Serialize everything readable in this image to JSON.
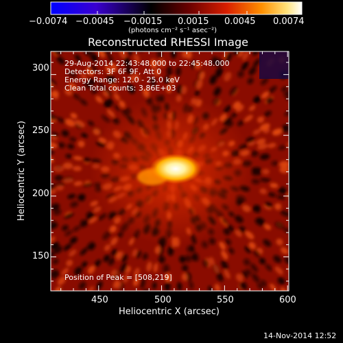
{
  "colorbar": {
    "tick_labels": [
      "−0.0074",
      "−0.0045",
      "−0.0015",
      "0.0015",
      "0.0045",
      "0.0074"
    ],
    "unit_label": "(photons cm⁻² s⁻¹ asec⁻²)",
    "colors": [
      "#0000ff",
      "#4b00c8",
      "#000000",
      "#7a0000",
      "#e02a00",
      "#ff9a00",
      "#ffe27a",
      "#ffffff"
    ]
  },
  "title": "Reconstructed RHESSI Image",
  "info": {
    "time_range": "29-Aug-2014 22:43:48.000 to 22:45:48.000",
    "detectors": "Detectors: 3F 6F 9F, Att 0",
    "energy": "Energy Range: 12.0 - 25.0 keV",
    "clean": "Clean    Total counts: 3.86E+03",
    "peak": "Position of Peak = [508,219]"
  },
  "axes": {
    "x_label": "Heliocentric X (arcsec)",
    "y_label": "Heliocentric Y (arcsec)",
    "x_ticks": [
      "450",
      "500",
      "550",
      "600"
    ],
    "y_ticks": [
      "150",
      "200",
      "250",
      "300"
    ],
    "x_range": [
      412,
      601
    ],
    "y_range": [
      122,
      319
    ]
  },
  "peak_position": [
    508,
    219
  ],
  "footer": {
    "date": "14-Nov-2014 12:52"
  }
}
